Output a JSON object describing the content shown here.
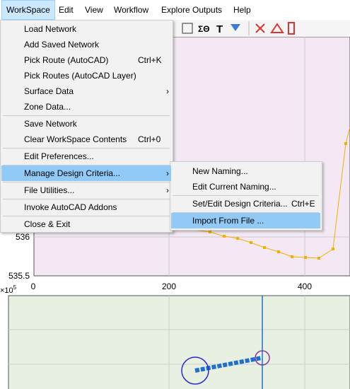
{
  "menubar": [
    "WorkSpace",
    "Edit",
    "View",
    "Workflow",
    "Explore Outputs",
    "Help"
  ],
  "menu": {
    "items": [
      {
        "label": "Load Network"
      },
      {
        "label": "Add Saved Network"
      },
      {
        "label": "Pick Route (AutoCAD)",
        "shortcut": "Ctrl+K"
      },
      {
        "label": "Pick Routes (AutoCAD Layer)"
      },
      {
        "label": "Surface Data",
        "submenu": true
      },
      {
        "label": "Zone Data..."
      },
      {
        "label": "Save Network",
        "separator_before": true
      },
      {
        "label": "Clear WorkSpace Contents",
        "shortcut": "Ctrl+0"
      },
      {
        "label": "Edit Preferences...",
        "separator_before": true
      },
      {
        "label": "Manage Design Criteria...",
        "submenu": true,
        "separator_before": true,
        "highlighted": true
      },
      {
        "label": "File Utilities...",
        "submenu": true,
        "separator_before": true
      },
      {
        "label": "Invoke AutoCAD Addons",
        "separator_before": true
      },
      {
        "label": "Close & Exit",
        "separator_before": true
      }
    ]
  },
  "submenu": {
    "items": [
      {
        "label": "New Naming..."
      },
      {
        "label": "Edit Current Naming..."
      },
      {
        "label": "Set/Edit Design Criteria...",
        "shortcut": "Ctrl+E",
        "separator_before": true
      },
      {
        "label": "Import From File ...",
        "separator_before": true,
        "highlighted": true
      }
    ]
  },
  "plot": {
    "ytick_labels": [
      "536",
      "535.5"
    ],
    "xtick_labels": [
      "0",
      "200",
      "400"
    ],
    "exponent": "×10",
    "exponent_power": "5"
  }
}
